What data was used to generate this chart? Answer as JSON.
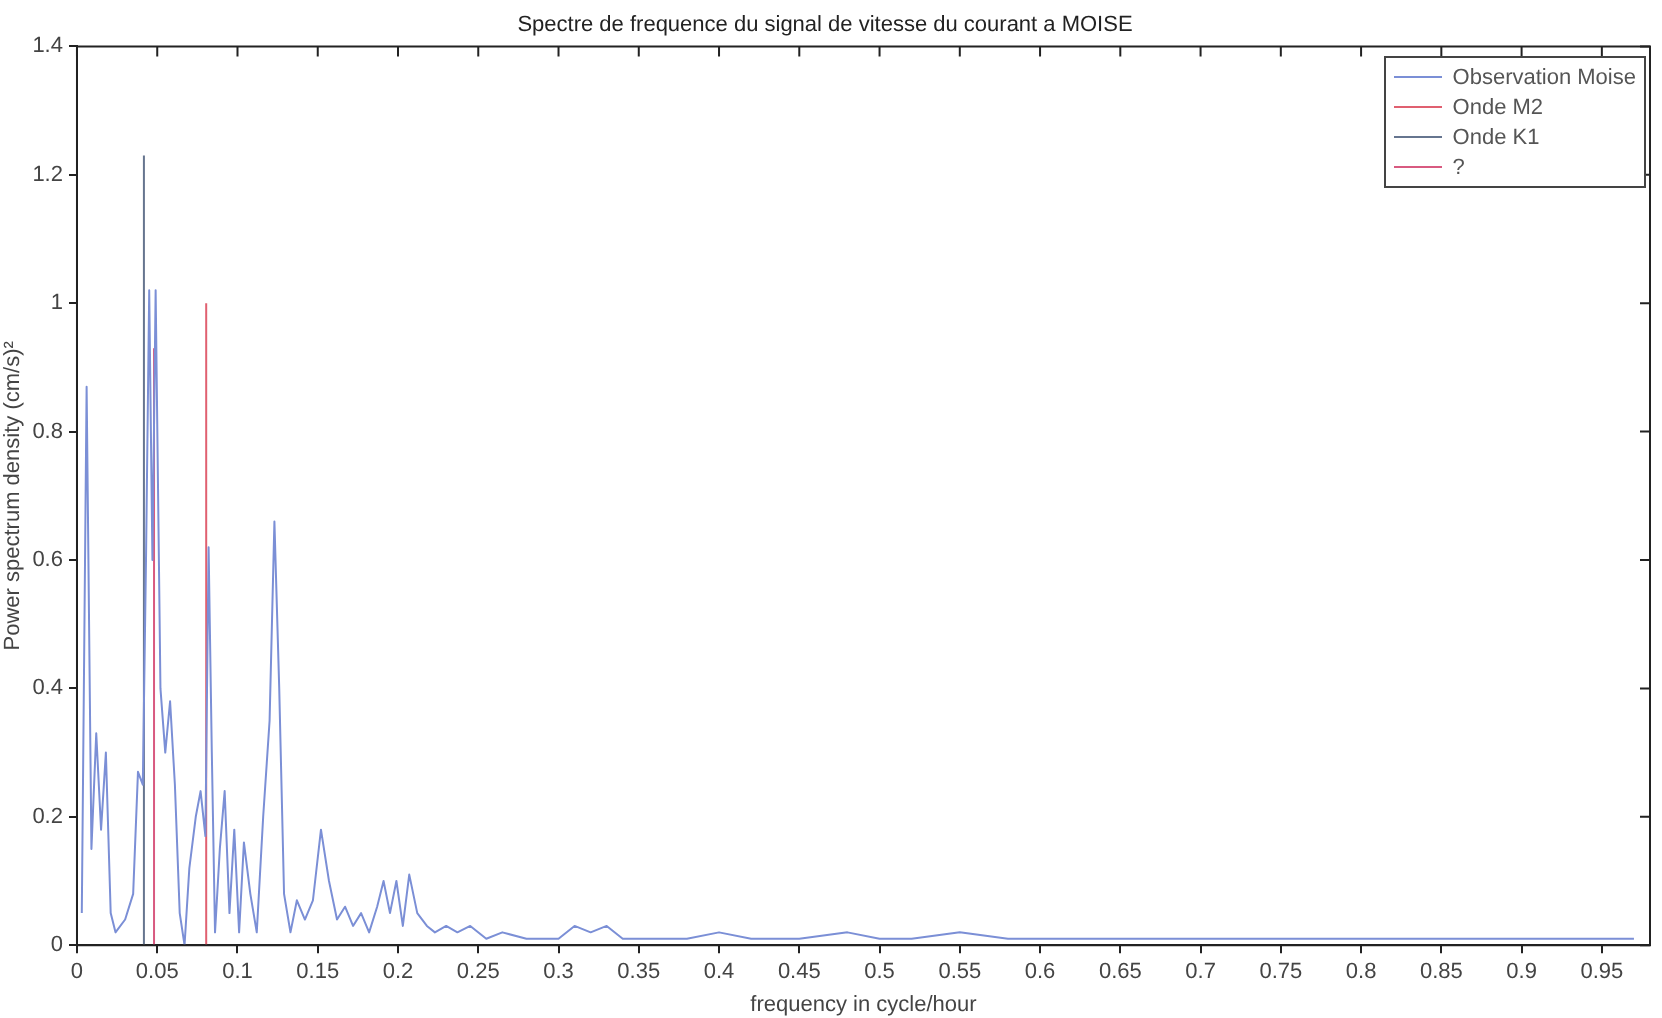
{
  "chart_data": {
    "type": "line",
    "title": "Spectre de frequence du signal de vitesse du courant a MOISE",
    "xlabel": "frequency in cycle/hour",
    "ylabel": "Power spectrum density (cm/s)²",
    "xlim": [
      0,
      0.98
    ],
    "xticks": [
      0,
      0.05,
      0.1,
      0.15,
      0.2,
      0.25,
      0.3,
      0.35,
      0.4,
      0.45,
      0.5,
      0.55,
      0.6,
      0.65,
      0.7,
      0.75,
      0.8,
      0.85,
      0.9,
      0.95
    ],
    "ylim": [
      0,
      1.4
    ],
    "yticks": [
      0,
      0.2,
      0.4,
      0.6,
      0.8,
      1,
      1.2,
      1.4
    ],
    "grid": false,
    "legend": "top right",
    "marker": "none",
    "line_style": "solid",
    "series": [
      {
        "name": "Observation Moise",
        "color": "#7b8fd6",
        "x": [
          0.003,
          0.006,
          0.009,
          0.012,
          0.015,
          0.018,
          0.021,
          0.024,
          0.03,
          0.035,
          0.038,
          0.041,
          0.043,
          0.045,
          0.047,
          0.049,
          0.052,
          0.055,
          0.058,
          0.061,
          0.064,
          0.067,
          0.07,
          0.074,
          0.077,
          0.08,
          0.082,
          0.084,
          0.086,
          0.089,
          0.092,
          0.095,
          0.098,
          0.101,
          0.104,
          0.108,
          0.112,
          0.116,
          0.12,
          0.123,
          0.126,
          0.129,
          0.133,
          0.137,
          0.142,
          0.147,
          0.152,
          0.157,
          0.162,
          0.167,
          0.172,
          0.177,
          0.182,
          0.187,
          0.191,
          0.195,
          0.199,
          0.203,
          0.207,
          0.212,
          0.218,
          0.223,
          0.23,
          0.237,
          0.245,
          0.255,
          0.265,
          0.28,
          0.3,
          0.31,
          0.32,
          0.33,
          0.34,
          0.36,
          0.38,
          0.4,
          0.42,
          0.45,
          0.48,
          0.5,
          0.52,
          0.55,
          0.58,
          0.62,
          0.66,
          0.7,
          0.74,
          0.78,
          0.82,
          0.86,
          0.9,
          0.94,
          0.97
        ],
        "values": [
          0.05,
          0.87,
          0.15,
          0.33,
          0.18,
          0.3,
          0.05,
          0.02,
          0.04,
          0.08,
          0.27,
          0.25,
          0.6,
          1.02,
          0.6,
          1.02,
          0.4,
          0.3,
          0.38,
          0.25,
          0.05,
          0,
          0.12,
          0.2,
          0.24,
          0.17,
          0.62,
          0.3,
          0.02,
          0.15,
          0.24,
          0.05,
          0.18,
          0.02,
          0.16,
          0.08,
          0.02,
          0.2,
          0.35,
          0.66,
          0.4,
          0.08,
          0.02,
          0.07,
          0.04,
          0.07,
          0.18,
          0.1,
          0.04,
          0.06,
          0.03,
          0.05,
          0.02,
          0.06,
          0.1,
          0.05,
          0.1,
          0.03,
          0.11,
          0.05,
          0.03,
          0.02,
          0.03,
          0.02,
          0.03,
          0.01,
          0.02,
          0.01,
          0.01,
          0.03,
          0.02,
          0.03,
          0.01,
          0.01,
          0.01,
          0.02,
          0.01,
          0.01,
          0.02,
          0.01,
          0.01,
          0.02,
          0.01,
          0.01,
          0.01,
          0.01,
          0.01,
          0.01,
          0.01,
          0.01,
          0.01,
          0.01,
          0.01
        ]
      },
      {
        "name": "Onde M2",
        "color": "#e06070",
        "x": [
          0.0805,
          0.0805
        ],
        "values": [
          0,
          1
        ]
      },
      {
        "name": "Onde K1",
        "color": "#66758f",
        "x": [
          0.0417,
          0.0417
        ],
        "values": [
          0,
          1.23
        ]
      },
      {
        "name": "?",
        "color": "#d85a80",
        "x": [
          0.048,
          0.048
        ],
        "values": [
          0,
          0.93
        ]
      }
    ]
  }
}
